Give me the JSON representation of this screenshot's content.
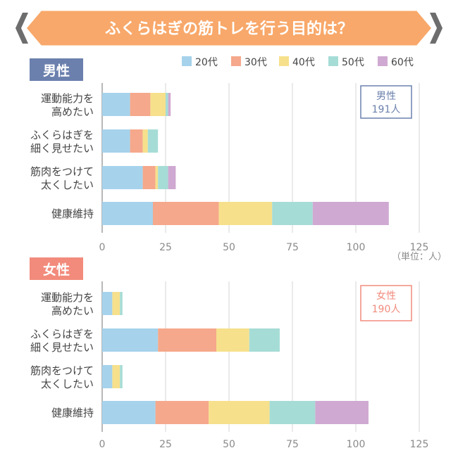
{
  "title": "ふくらはぎの筋トレを行う目的は？",
  "colors": {
    "banner": "#f8a86a",
    "banner_border": "#ffffff",
    "chevron": "#6d6d6d",
    "male_tag": "#6b80ad",
    "female_tag": "#f28b7c",
    "grid": "#d6d6d6",
    "axis": "#888888",
    "label": "#444444",
    "tick": "#8a8a8a"
  },
  "legend": [
    {
      "label": "20代",
      "color": "#a6d2ec"
    },
    {
      "label": "30代",
      "color": "#f5a88b"
    },
    {
      "label": "40代",
      "color": "#f6e08c"
    },
    {
      "label": "50代",
      "color": "#a6dcd6"
    },
    {
      "label": "60代",
      "color": "#cfa9d1"
    }
  ],
  "unit_note": "（単位：人）",
  "chart_data": [
    {
      "type": "bar",
      "orientation": "horizontal",
      "stacked": true,
      "group_label": "男性",
      "total_box": {
        "line1": "男性",
        "line2": "191人"
      },
      "categories": [
        [
          "運動能力を",
          "高めたい"
        ],
        [
          "ふくらはぎを",
          "細く見せたい"
        ],
        [
          "筋肉をつけて",
          "太くしたい"
        ],
        [
          "健康維持"
        ]
      ],
      "series": [
        {
          "name": "20代",
          "values": [
            11,
            11,
            16,
            20
          ]
        },
        {
          "name": "30代",
          "values": [
            8,
            5,
            5,
            26
          ]
        },
        {
          "name": "40代",
          "values": [
            6,
            2,
            1,
            21
          ]
        },
        {
          "name": "50代",
          "values": [
            1,
            4,
            4,
            16
          ]
        },
        {
          "name": "60代",
          "values": [
            1,
            0,
            3,
            30
          ]
        }
      ],
      "xlim": [
        0,
        125
      ],
      "xticks": [
        0,
        25,
        50,
        75,
        100,
        125
      ]
    },
    {
      "type": "bar",
      "orientation": "horizontal",
      "stacked": true,
      "group_label": "女性",
      "total_box": {
        "line1": "女性",
        "line2": "190人"
      },
      "categories": [
        [
          "運動能力を",
          "高めたい"
        ],
        [
          "ふくらはぎを",
          "細く見せたい"
        ],
        [
          "筋肉をつけて",
          "太くしたい"
        ],
        [
          "健康維持"
        ]
      ],
      "series": [
        {
          "name": "20代",
          "values": [
            4,
            22,
            4,
            21
          ]
        },
        {
          "name": "30代",
          "values": [
            0,
            23,
            0,
            21
          ]
        },
        {
          "name": "40代",
          "values": [
            3,
            13,
            3,
            24
          ]
        },
        {
          "name": "50代",
          "values": [
            1,
            12,
            1,
            18
          ]
        },
        {
          "name": "60代",
          "values": [
            0,
            0,
            0,
            21
          ]
        }
      ],
      "xlim": [
        0,
        125
      ],
      "xticks": [
        0,
        25,
        50,
        75,
        100,
        125
      ]
    }
  ]
}
